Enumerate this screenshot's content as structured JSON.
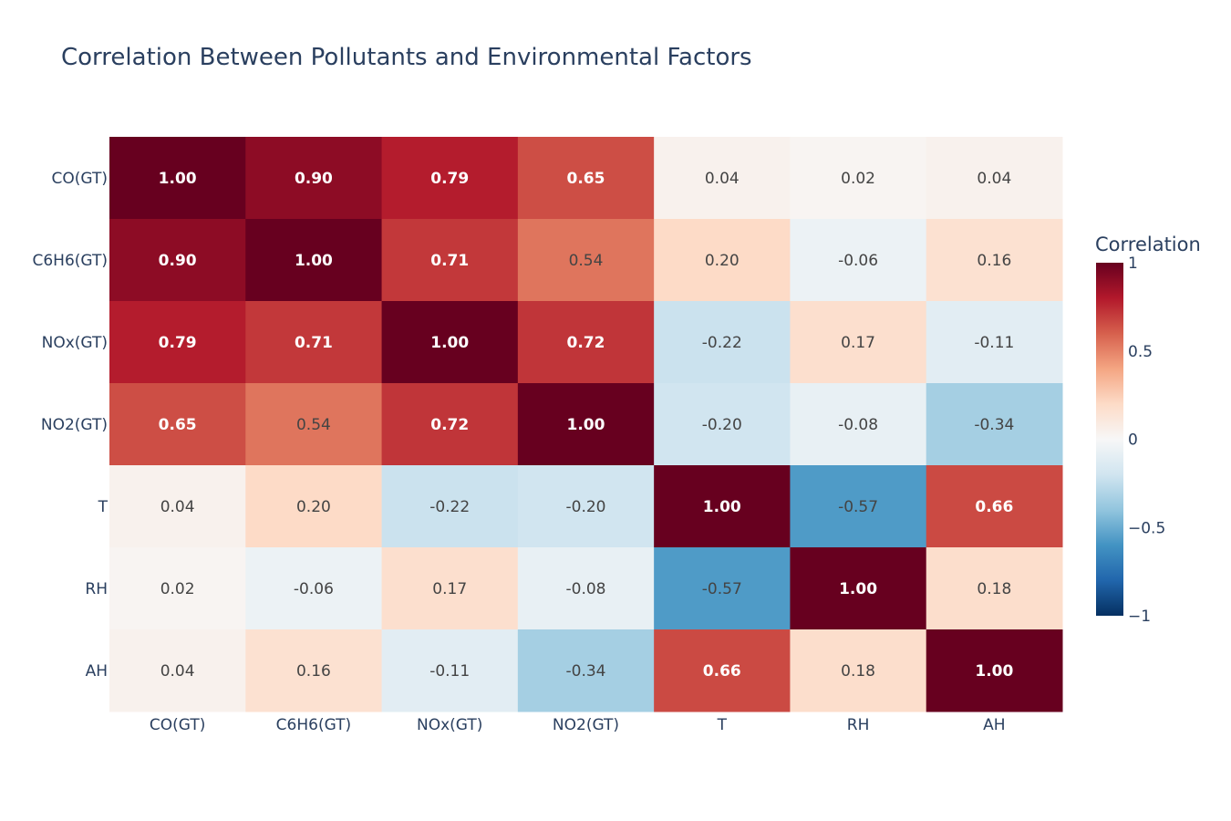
{
  "chart_data": {
    "type": "heatmap",
    "title": "Correlation Between Pollutants and Environmental Factors",
    "x_labels": [
      "CO(GT)",
      "C6H6(GT)",
      "NOx(GT)",
      "NO2(GT)",
      "T",
      "RH",
      "AH"
    ],
    "y_labels": [
      "CO(GT)",
      "C6H6(GT)",
      "NOx(GT)",
      "NO2(GT)",
      "T",
      "RH",
      "AH"
    ],
    "values": [
      [
        1.0,
        0.9,
        0.79,
        0.65,
        0.04,
        0.02,
        0.04
      ],
      [
        0.9,
        1.0,
        0.71,
        0.54,
        0.2,
        -0.06,
        0.16
      ],
      [
        0.79,
        0.71,
        1.0,
        0.72,
        -0.22,
        0.17,
        -0.11
      ],
      [
        0.65,
        0.54,
        0.72,
        1.0,
        -0.2,
        -0.08,
        -0.34
      ],
      [
        0.04,
        0.2,
        -0.22,
        -0.2,
        1.0,
        -0.57,
        0.66
      ],
      [
        0.02,
        -0.06,
        0.17,
        -0.08,
        -0.57,
        1.0,
        0.18
      ],
      [
        0.04,
        0.16,
        -0.11,
        -0.34,
        0.66,
        0.18,
        1.0
      ]
    ],
    "value_format": "2 decimals",
    "zrange": [
      -1,
      1
    ],
    "colorscale": "RdBu reversed",
    "colorbar": {
      "title": "Correlation",
      "ticks": [
        1,
        0.5,
        0,
        -0.5,
        -1
      ],
      "tick_labels": [
        "1",
        "0.5",
        "0",
        "−0.5",
        "−1"
      ]
    }
  }
}
